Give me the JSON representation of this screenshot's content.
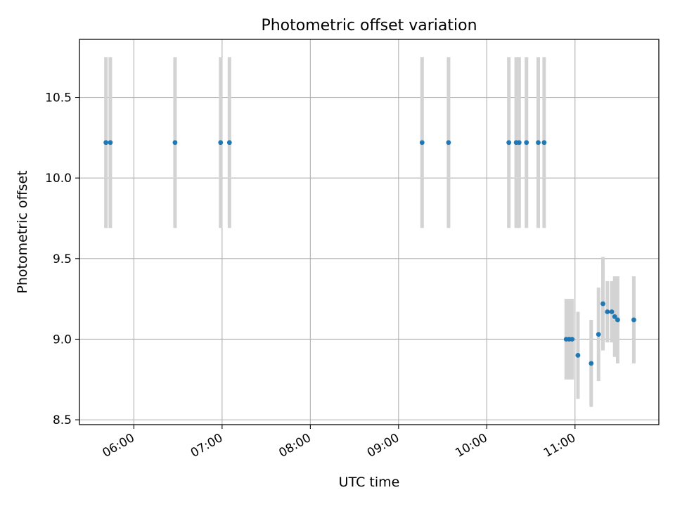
{
  "chart_data": {
    "type": "scatter",
    "title": "Photometric offset variation",
    "xlabel": "UTC time",
    "ylabel": "Photometric offset",
    "xlim": [
      "05:23",
      "11:57"
    ],
    "ylim": [
      8.47,
      10.86
    ],
    "x_ticks": [
      "06:00",
      "07:00",
      "08:00",
      "09:00",
      "10:00",
      "11:00"
    ],
    "y_ticks": [
      8.5,
      9.0,
      9.5,
      10.0,
      10.5
    ],
    "grid": true,
    "colors": {
      "point": "#1f77b4",
      "errorbar": "#d3d3d3",
      "grid": "#b0b0b0",
      "axis": "#000000"
    },
    "series": [
      {
        "points": [
          {
            "x": "05:41",
            "y": 10.22,
            "yerr": 0.53
          },
          {
            "x": "05:44",
            "y": 10.22,
            "yerr": 0.53
          },
          {
            "x": "06:28",
            "y": 10.22,
            "yerr": 0.53
          },
          {
            "x": "06:59",
            "y": 10.22,
            "yerr": 0.53
          },
          {
            "x": "07:05",
            "y": 10.22,
            "yerr": 0.53
          },
          {
            "x": "09:16",
            "y": 10.22,
            "yerr": 0.53
          },
          {
            "x": "09:34",
            "y": 10.22,
            "yerr": 0.53
          },
          {
            "x": "10:15",
            "y": 10.22,
            "yerr": 0.53
          },
          {
            "x": "10:20",
            "y": 10.22,
            "yerr": 0.53
          },
          {
            "x": "10:22",
            "y": 10.22,
            "yerr": 0.53
          },
          {
            "x": "10:27",
            "y": 10.22,
            "yerr": 0.53
          },
          {
            "x": "10:35",
            "y": 10.22,
            "yerr": 0.53
          },
          {
            "x": "10:39",
            "y": 10.22,
            "yerr": 0.53
          },
          {
            "x": "10:54",
            "y": 9.0,
            "yerr": 0.25
          },
          {
            "x": "10:56",
            "y": 9.0,
            "yerr": 0.25
          },
          {
            "x": "10:58",
            "y": 9.0,
            "yerr": 0.25
          },
          {
            "x": "11:02",
            "y": 8.9,
            "yerr": 0.27
          },
          {
            "x": "11:11",
            "y": 8.85,
            "yerr": 0.27
          },
          {
            "x": "11:16",
            "y": 9.03,
            "yerr": 0.29
          },
          {
            "x": "11:19",
            "y": 9.22,
            "yerr": 0.29
          },
          {
            "x": "11:22",
            "y": 9.17,
            "yerr": 0.19
          },
          {
            "x": "11:25",
            "y": 9.17,
            "yerr": 0.19
          },
          {
            "x": "11:27",
            "y": 9.14,
            "yerr": 0.25
          },
          {
            "x": "11:29",
            "y": 9.12,
            "yerr": 0.27
          },
          {
            "x": "11:40",
            "y": 9.12,
            "yerr": 0.27
          }
        ]
      }
    ]
  }
}
